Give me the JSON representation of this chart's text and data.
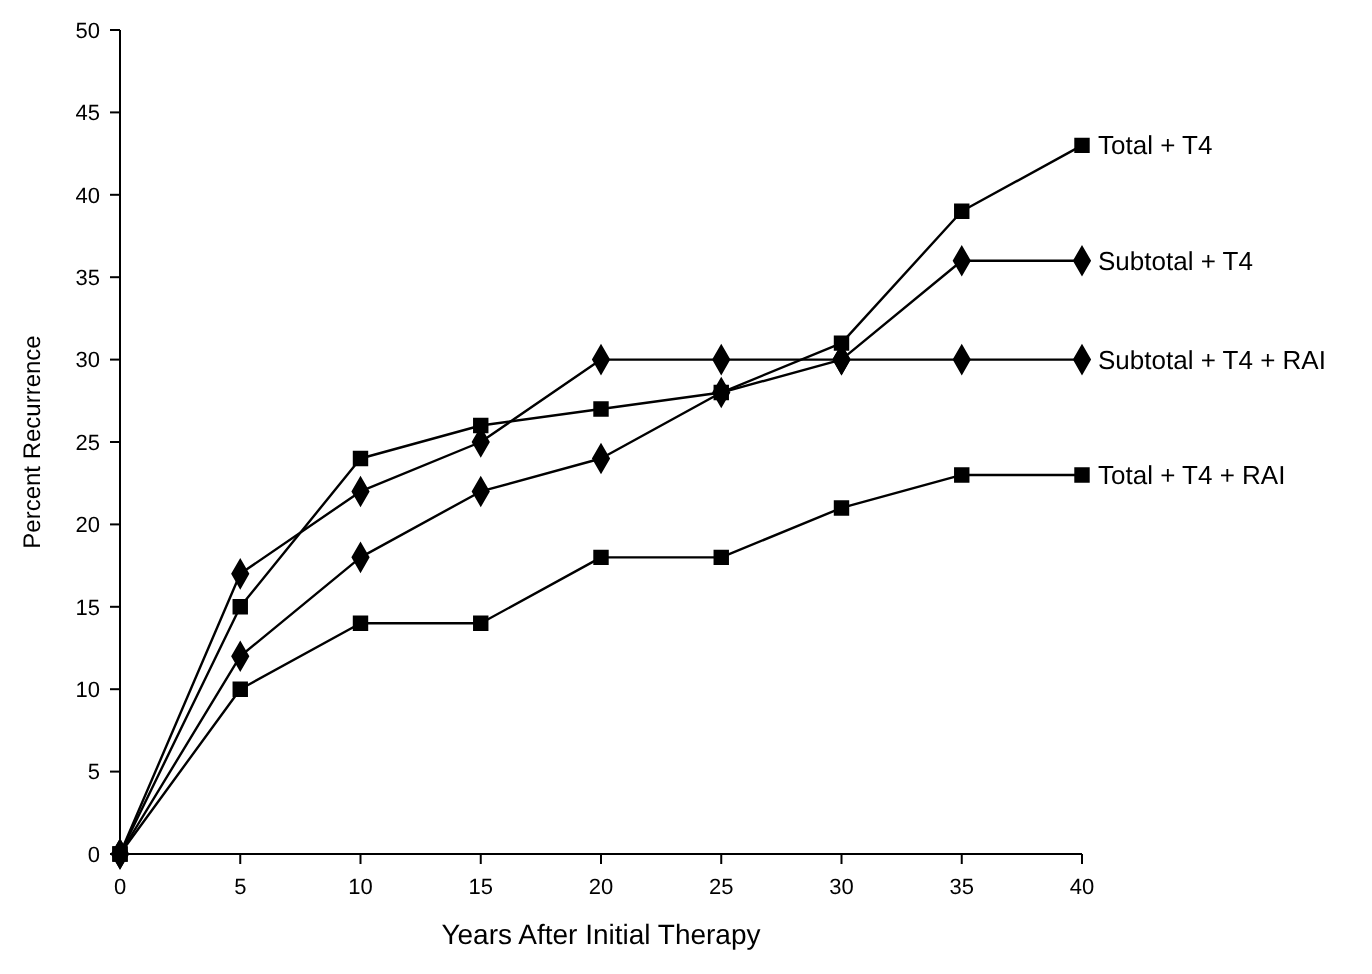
{
  "chart_data": {
    "type": "line",
    "xlabel": "Years After Initial Therapy",
    "ylabel": "Percent Recurrence",
    "x": [
      0,
      5,
      10,
      15,
      20,
      25,
      30,
      35,
      40
    ],
    "series": [
      {
        "name": "Total + T4",
        "color": "#000000",
        "marker": "square",
        "values": [
          0,
          15,
          24,
          26,
          27,
          28,
          31,
          39,
          43
        ]
      },
      {
        "name": "Subtotal + T4",
        "color": "#000000",
        "marker": "diamond",
        "values": [
          0,
          12,
          18,
          22,
          24,
          28,
          30,
          36,
          36
        ]
      },
      {
        "name": "Subtotal + T4 + RAI",
        "color": "#000000",
        "marker": "diamond",
        "values": [
          0,
          17,
          22,
          25,
          30,
          30,
          30,
          30,
          30
        ]
      },
      {
        "name": "Total + T4 + RAI",
        "color": "#000000",
        "marker": "square",
        "values": [
          0,
          10,
          14,
          14,
          18,
          18,
          21,
          23,
          23
        ]
      }
    ],
    "xlim": [
      0,
      40
    ],
    "xticks": [
      0,
      5,
      10,
      15,
      20,
      25,
      30,
      35,
      40
    ],
    "ylim": [
      0,
      50
    ],
    "yticks": [
      0,
      5,
      10,
      15,
      20,
      25,
      30,
      35,
      40,
      45,
      50
    ],
    "grid": false,
    "line_style": "solid"
  }
}
